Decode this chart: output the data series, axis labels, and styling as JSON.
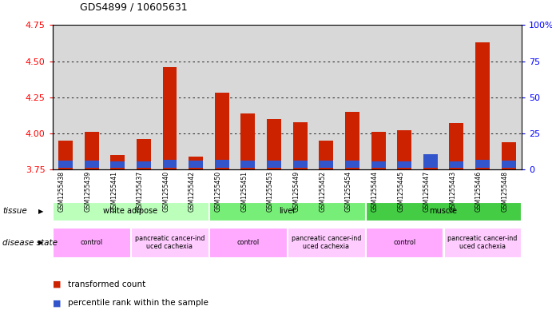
{
  "title": "GDS4899 / 10605631",
  "samples": [
    "GSM1255438",
    "GSM1255439",
    "GSM1255441",
    "GSM1255437",
    "GSM1255440",
    "GSM1255442",
    "GSM1255450",
    "GSM1255451",
    "GSM1255453",
    "GSM1255449",
    "GSM1255452",
    "GSM1255454",
    "GSM1255444",
    "GSM1255445",
    "GSM1255447",
    "GSM1255443",
    "GSM1255446",
    "GSM1255448"
  ],
  "red_values": [
    3.95,
    4.01,
    3.85,
    3.96,
    4.46,
    3.84,
    4.28,
    4.14,
    4.1,
    4.08,
    3.95,
    4.15,
    4.01,
    4.02,
    3.8,
    4.07,
    4.63,
    3.94
  ],
  "blue_heights": [
    0.045,
    0.045,
    0.043,
    0.043,
    0.05,
    0.048,
    0.05,
    0.048,
    0.045,
    0.048,
    0.047,
    0.047,
    0.044,
    0.044,
    0.09,
    0.044,
    0.05,
    0.046
  ],
  "y_min": 3.75,
  "y_max": 4.75,
  "y_ticks": [
    3.75,
    4.0,
    4.25,
    4.5,
    4.75
  ],
  "y_right_ticks": [
    0,
    25,
    50,
    75,
    100
  ],
  "y_right_labels": [
    "0",
    "25",
    "50",
    "75",
    "100%"
  ],
  "tissue_groups": [
    {
      "label": "white adipose",
      "start": 0,
      "end": 6,
      "color": "#aaffaa"
    },
    {
      "label": "liver",
      "start": 6,
      "end": 12,
      "color": "#88ee88"
    },
    {
      "label": "muscle",
      "start": 12,
      "end": 18,
      "color": "#44cc44"
    }
  ],
  "disease_groups": [
    {
      "label": "control",
      "start": 0,
      "end": 3,
      "color": "#ffaaff"
    },
    {
      "label": "pancreatic cancer-ind\nuced cachexia",
      "start": 3,
      "end": 6,
      "color": "#ffccff"
    },
    {
      "label": "control",
      "start": 6,
      "end": 9,
      "color": "#ffaaff"
    },
    {
      "label": "pancreatic cancer-ind\nuced cachexia",
      "start": 9,
      "end": 12,
      "color": "#ffccff"
    },
    {
      "label": "control",
      "start": 12,
      "end": 15,
      "color": "#ffaaff"
    },
    {
      "label": "pancreatic cancer-ind\nuced cachexia",
      "start": 15,
      "end": 18,
      "color": "#ffccff"
    }
  ],
  "bar_width": 0.55,
  "red_color": "#cc2200",
  "blue_color": "#3355cc",
  "background_color": "#ffffff",
  "plot_bg_color": "#d8d8d8"
}
